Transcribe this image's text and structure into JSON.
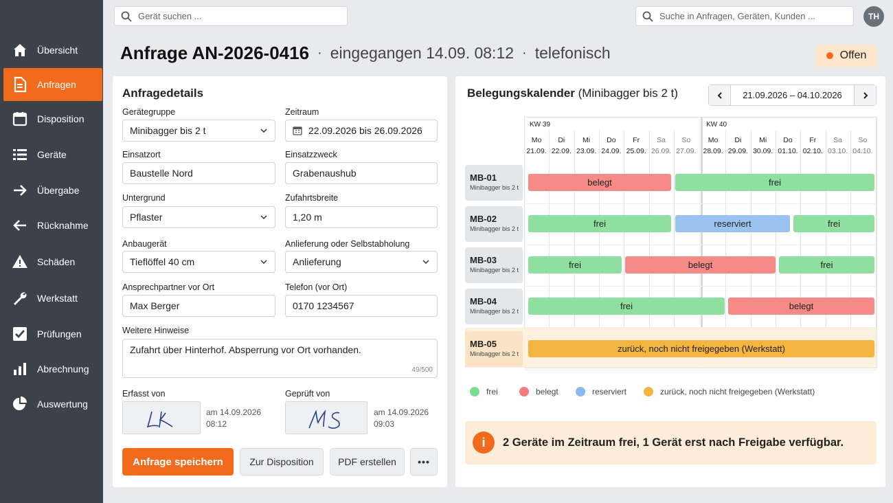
{
  "nav": {
    "items": [
      {
        "label": "Übersicht",
        "icon": "home-icon"
      },
      {
        "label": "Anfragen",
        "icon": "document-icon"
      },
      {
        "label": "Disposition",
        "icon": "calendar-icon"
      },
      {
        "label": "Geräte",
        "icon": "list-icon"
      },
      {
        "label": "Übergabe",
        "icon": "arrow-right-icon"
      },
      {
        "label": "Rücknahme",
        "icon": "arrow-left-icon"
      },
      {
        "label": "Schäden",
        "icon": "warning-icon"
      },
      {
        "label": "Werkstatt",
        "icon": "wrench-icon"
      },
      {
        "label": "Prüfungen",
        "icon": "checkbox-icon"
      },
      {
        "label": "Abrechnung",
        "icon": "bar-chart-icon"
      },
      {
        "label": "Auswertung",
        "icon": "pie-chart-icon"
      }
    ],
    "active_index": 1
  },
  "top": {
    "device_search_placeholder": "Gerät suchen ...",
    "global_search_placeholder": "Suche in Anfragen, Geräten, Kunden ...",
    "avatar_initials": "TH"
  },
  "header": {
    "title": "Anfrage AN-2026-0416",
    "received": "eingegangen 14.09. 08:12",
    "channel": "telefonisch",
    "separator": "·",
    "status": "Offen",
    "status_color": "#f26b1d"
  },
  "form": {
    "heading": "Anfragedetails",
    "geraetegruppe": {
      "label": "Gerätegruppe",
      "value": "Minibagger bis 2 t"
    },
    "zeitraum": {
      "label": "Zeitraum",
      "value": "22.09.2026 bis 26.09.2026"
    },
    "einsatzort": {
      "label": "Einsatzort",
      "value": "Baustelle Nord"
    },
    "einsatzzweck": {
      "label": "Einsatzzweck",
      "value": "Grabenaushub"
    },
    "untergrund": {
      "label": "Untergrund",
      "value": "Pflaster"
    },
    "zufahrtsbreite": {
      "label": "Zufahrtsbreite",
      "value": "1,20 m"
    },
    "anbaugeraet": {
      "label": "Anbaugerät",
      "value": "Tieflöffel 40 cm"
    },
    "anlieferung": {
      "label": "Anlieferung oder Selbstabholung",
      "value": "Anlieferung"
    },
    "ansprechpartner": {
      "label": "Ansprechpartner vor Ort",
      "value": "Max Berger"
    },
    "telefon": {
      "label": "Telefon (vor Ort)",
      "value": "0170 1234567"
    },
    "hinweise": {
      "label": "Weitere Hinweise",
      "value": "Zufahrt über Hinterhof. Absperrung vor Ort vorhanden.",
      "counter": "49/500"
    },
    "erfasst": {
      "label": "Erfasst von",
      "date": "am 14.09.2026",
      "time": "08:12"
    },
    "geprueft": {
      "label": "Geprüft von",
      "date": "am 14.09.2026",
      "time": "09:03"
    },
    "buttons": {
      "save": "Anfrage speichern",
      "dispo": "Zur Disposition",
      "pdf": "PDF erstellen",
      "more": "•••"
    }
  },
  "calendar": {
    "title": "Belegungskalender",
    "subtitle": "(Minibagger bis 2 t)",
    "range": "21.09.2026 – 04.10.2026",
    "weeks": [
      "KW 39",
      "KW 40"
    ],
    "days": [
      {
        "d": "Mo",
        "date": "21.09."
      },
      {
        "d": "Di",
        "date": "22.09."
      },
      {
        "d": "Mi",
        "date": "23.09."
      },
      {
        "d": "Do",
        "date": "24.09."
      },
      {
        "d": "Fr",
        "date": "25.09."
      },
      {
        "d": "Sa",
        "date": "26.09."
      },
      {
        "d": "So",
        "date": "27.09."
      },
      {
        "d": "Mo",
        "date": "28.09."
      },
      {
        "d": "Di",
        "date": "29.09."
      },
      {
        "d": "Mi",
        "date": "30.09."
      },
      {
        "d": "Do",
        "date": "01.10."
      },
      {
        "d": "Fr",
        "date": "02.10."
      },
      {
        "d": "Sa",
        "date": "03.10."
      },
      {
        "d": "So",
        "date": "04.10."
      }
    ],
    "rows": [
      {
        "name": "MB-01",
        "type": "Minibagger bis 2 t",
        "segments": [
          {
            "status": "belegt",
            "label": "belegt"
          },
          {
            "status": "frei",
            "label": "frei"
          }
        ]
      },
      {
        "name": "MB-02",
        "type": "Minibagger bis 2 t",
        "segments": [
          {
            "status": "frei",
            "label": "frei"
          },
          {
            "status": "reserviert",
            "label": "reserviert"
          },
          {
            "status": "frei",
            "label": "frei"
          }
        ]
      },
      {
        "name": "MB-03",
        "type": "Minibagger bis 2 t",
        "segments": [
          {
            "status": "frei",
            "label": "frei"
          },
          {
            "status": "belegt",
            "label": "belegt"
          },
          {
            "status": "frei",
            "label": "frei"
          }
        ]
      },
      {
        "name": "MB-04",
        "type": "Minibagger bis 2 t",
        "segments": [
          {
            "status": "frei",
            "label": "frei"
          },
          {
            "status": "belegt",
            "label": "belegt"
          }
        ]
      },
      {
        "name": "MB-05",
        "type": "Minibagger bis 2 t",
        "segments": [
          {
            "status": "werkstatt",
            "label": "zurück, noch nicht freigegeben (Werkstatt)"
          }
        ]
      }
    ],
    "legend": [
      {
        "label": "frei",
        "color": "#7ddc93"
      },
      {
        "label": "belegt",
        "color": "#f57c7c"
      },
      {
        "label": "reserviert",
        "color": "#8ab8f0"
      },
      {
        "label": "zurück, noch nicht freigegeben (Werkstatt)",
        "color": "#f4b43f"
      }
    ],
    "colors": {
      "frei": "#8fe0a0",
      "belegt": "#f58a86",
      "reserviert": "#9cc3ef",
      "werkstatt": "#f4b440"
    }
  },
  "info": {
    "icon": "i",
    "text": "2 Geräte im Zeitraum frei, 1 Gerät erst nach Freigabe verfügbar."
  }
}
